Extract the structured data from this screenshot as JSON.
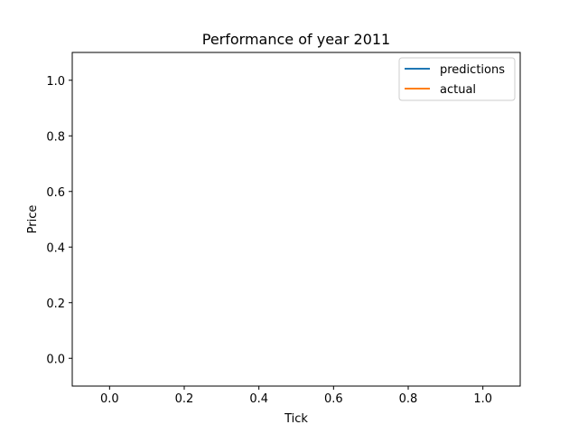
{
  "chart_data": {
    "type": "line",
    "title": "Performance of year 2011",
    "xlabel": "Tick",
    "ylabel": "Price",
    "xlim": [
      -0.1,
      1.1
    ],
    "ylim": [
      -0.1,
      1.1
    ],
    "xticks": [
      0.0,
      0.2,
      0.4,
      0.6,
      0.8,
      1.0
    ],
    "yticks": [
      0.0,
      0.2,
      0.4,
      0.6,
      0.8,
      1.0
    ],
    "xtick_labels": [
      "0.0",
      "0.2",
      "0.4",
      "0.6",
      "0.8",
      "1.0"
    ],
    "ytick_labels": [
      "0.0",
      "0.2",
      "0.4",
      "0.6",
      "0.8",
      "1.0"
    ],
    "grid": false,
    "legend_position": "top-right",
    "series": [
      {
        "name": "predictions",
        "color": "#1f77b4",
        "x": [],
        "y": []
      },
      {
        "name": "actual",
        "color": "#ff7f0e",
        "x": [],
        "y": []
      }
    ]
  }
}
